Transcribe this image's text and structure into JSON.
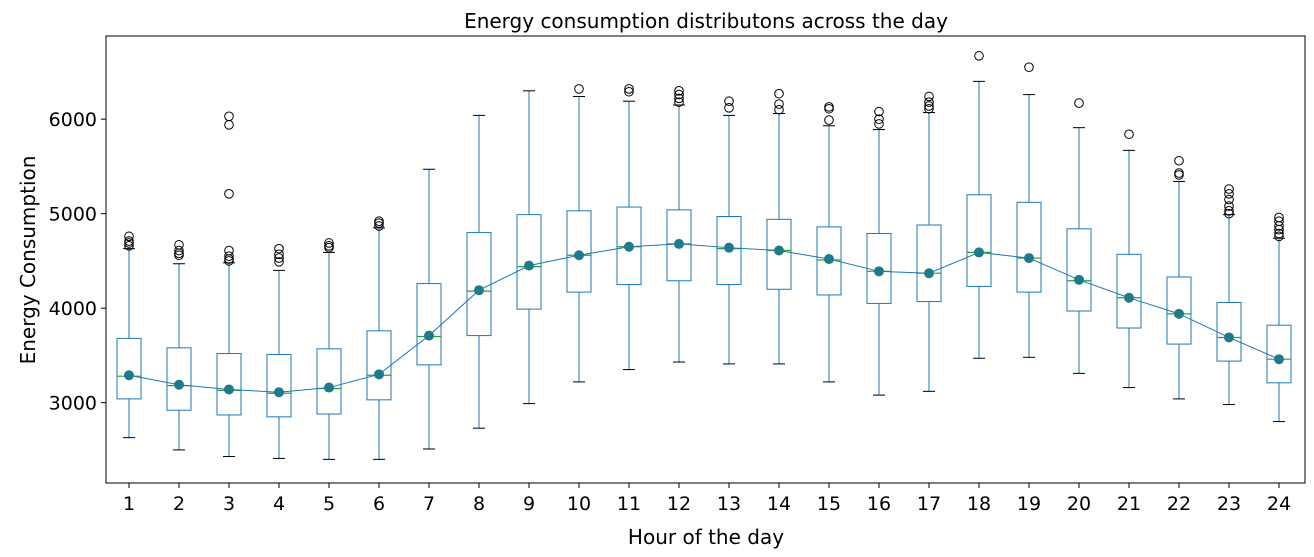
{
  "chart_data": {
    "type": "box",
    "title": "Energy consumption distributons across the day",
    "xlabel": "Hour of the day",
    "ylabel": "Energy Consumption",
    "categories": [
      "1",
      "2",
      "3",
      "4",
      "5",
      "6",
      "7",
      "8",
      "9",
      "10",
      "11",
      "12",
      "13",
      "14",
      "15",
      "16",
      "17",
      "18",
      "19",
      "20",
      "21",
      "22",
      "23",
      "24"
    ],
    "yticks": [
      3000,
      4000,
      5000,
      6000
    ],
    "ylim": [
      2150,
      6880
    ],
    "grid": false,
    "colors": {
      "box": "#1f77b4",
      "median": "#2ca02c",
      "mean_line": "#1f77b4",
      "mean_marker": "#1f7a8c",
      "whisker_cap": "#000000",
      "flier": "#000000"
    },
    "boxes": [
      {
        "hour": "1",
        "whisker_low": 2630,
        "q1": 3040,
        "median": 3280,
        "q3": 3680,
        "whisker_high": 4630,
        "mean": 3290,
        "outliers": [
          4660,
          4690,
          4710,
          4760
        ]
      },
      {
        "hour": "2",
        "whisker_low": 2500,
        "q1": 2920,
        "median": 3180,
        "q3": 3580,
        "whisker_high": 4470,
        "mean": 3190,
        "outliers": [
          4560,
          4580,
          4610,
          4670
        ]
      },
      {
        "hour": "3",
        "whisker_low": 2430,
        "q1": 2870,
        "median": 3130,
        "q3": 3520,
        "whisker_high": 4480,
        "mean": 3140,
        "outliers": [
          4500,
          4520,
          4550,
          4610,
          5210,
          5940,
          6030
        ]
      },
      {
        "hour": "4",
        "whisker_low": 2410,
        "q1": 2850,
        "median": 3100,
        "q3": 3510,
        "whisker_high": 4400,
        "mean": 3110,
        "outliers": [
          4490,
          4530,
          4570,
          4630
        ]
      },
      {
        "hour": "5",
        "whisker_low": 2400,
        "q1": 2880,
        "median": 3150,
        "q3": 3570,
        "whisker_high": 4590,
        "mean": 3160,
        "outliers": [
          4640,
          4660,
          4690
        ]
      },
      {
        "hour": "6",
        "whisker_low": 2400,
        "q1": 3030,
        "median": 3290,
        "q3": 3760,
        "whisker_high": 4850,
        "mean": 3300,
        "outliers": [
          4870,
          4900,
          4920
        ]
      },
      {
        "hour": "7",
        "whisker_low": 2510,
        "q1": 3400,
        "median": 3700,
        "q3": 4260,
        "whisker_high": 5470,
        "mean": 3710,
        "outliers": []
      },
      {
        "hour": "8",
        "whisker_low": 2730,
        "q1": 3710,
        "median": 4180,
        "q3": 4800,
        "whisker_high": 6040,
        "mean": 4190,
        "outliers": []
      },
      {
        "hour": "9",
        "whisker_low": 2990,
        "q1": 3990,
        "median": 4440,
        "q3": 4990,
        "whisker_high": 6300,
        "mean": 4450,
        "outliers": []
      },
      {
        "hour": "10",
        "whisker_low": 3220,
        "q1": 4170,
        "median": 4560,
        "q3": 5030,
        "whisker_high": 6240,
        "mean": 4560,
        "outliers": [
          6320
        ]
      },
      {
        "hour": "11",
        "whisker_low": 3350,
        "q1": 4250,
        "median": 4650,
        "q3": 5070,
        "whisker_high": 6190,
        "mean": 4650,
        "outliers": [
          6290,
          6320
        ]
      },
      {
        "hour": "12",
        "whisker_low": 3430,
        "q1": 4290,
        "median": 4680,
        "q3": 5040,
        "whisker_high": 6150,
        "mean": 4680,
        "outliers": [
          6180,
          6220,
          6260,
          6300
        ]
      },
      {
        "hour": "13",
        "whisker_low": 3410,
        "q1": 4250,
        "median": 4630,
        "q3": 4970,
        "whisker_high": 6040,
        "mean": 4640,
        "outliers": [
          6120,
          6190
        ]
      },
      {
        "hour": "14",
        "whisker_low": 3410,
        "q1": 4200,
        "median": 4610,
        "q3": 4940,
        "whisker_high": 6060,
        "mean": 4610,
        "outliers": [
          6100,
          6160,
          6270
        ]
      },
      {
        "hour": "15",
        "whisker_low": 3220,
        "q1": 4140,
        "median": 4510,
        "q3": 4860,
        "whisker_high": 5930,
        "mean": 4520,
        "outliers": [
          5990,
          6110,
          6130
        ]
      },
      {
        "hour": "16",
        "whisker_low": 3080,
        "q1": 4050,
        "median": 4390,
        "q3": 4790,
        "whisker_high": 5890,
        "mean": 4390,
        "outliers": [
          5950,
          6000,
          6080
        ]
      },
      {
        "hour": "17",
        "whisker_low": 3120,
        "q1": 4070,
        "median": 4370,
        "q3": 4880,
        "whisker_high": 6070,
        "mean": 4370,
        "outliers": [
          6110,
          6140,
          6180,
          6240
        ]
      },
      {
        "hour": "18",
        "whisker_low": 3470,
        "q1": 4230,
        "median": 4590,
        "q3": 5200,
        "whisker_high": 6400,
        "mean": 4590,
        "outliers": [
          6670
        ]
      },
      {
        "hour": "19",
        "whisker_low": 3480,
        "q1": 4170,
        "median": 4530,
        "q3": 5120,
        "whisker_high": 6260,
        "mean": 4530,
        "outliers": [
          6550
        ]
      },
      {
        "hour": "20",
        "whisker_low": 3310,
        "q1": 3970,
        "median": 4290,
        "q3": 4840,
        "whisker_high": 5910,
        "mean": 4300,
        "outliers": [
          6170
        ]
      },
      {
        "hour": "21",
        "whisker_low": 3160,
        "q1": 3790,
        "median": 4110,
        "q3": 4570,
        "whisker_high": 5670,
        "mean": 4110,
        "outliers": [
          5840
        ]
      },
      {
        "hour": "22",
        "whisker_low": 3040,
        "q1": 3620,
        "median": 3940,
        "q3": 4330,
        "whisker_high": 5340,
        "mean": 3940,
        "outliers": [
          5410,
          5430,
          5560
        ]
      },
      {
        "hour": "23",
        "whisker_low": 2980,
        "q1": 3440,
        "median": 3690,
        "q3": 4060,
        "whisker_high": 4990,
        "mean": 3690,
        "outliers": [
          5000,
          5030,
          5080,
          5150,
          5210,
          5260
        ]
      },
      {
        "hour": "24",
        "whisker_low": 2800,
        "q1": 3210,
        "median": 3460,
        "q3": 3820,
        "whisker_high": 4740,
        "mean": 3460,
        "outliers": [
          4760,
          4790,
          4830,
          4870,
          4920,
          4960
        ]
      }
    ]
  }
}
